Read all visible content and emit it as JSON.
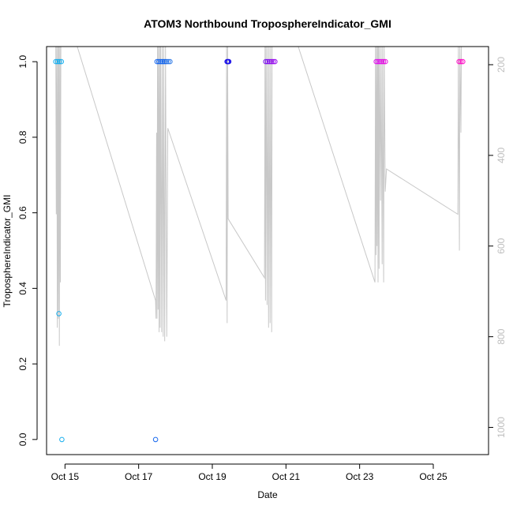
{
  "chart_data": {
    "type": "scatter",
    "title": "ATOM3 Northbound TroposphereIndicator_GMI",
    "xlabel": "Date",
    "ylabel": "TroposphereIndicator_GMI",
    "xlim": [
      "2016-10-14T12:00",
      "2016-10-26T12:00"
    ],
    "ylim": [
      -0.04,
      1.04
    ],
    "x_ticks": [
      "Oct 15",
      "Oct 17",
      "Oct 19",
      "Oct 21",
      "Oct 23",
      "Oct 25"
    ],
    "y_ticks": [
      "0.0",
      "0.2",
      "0.4",
      "0.6",
      "0.8",
      "1.0"
    ],
    "y2_ticks": [
      "200",
      "400",
      "600",
      "800",
      "1000"
    ],
    "y2_lim": [
      1060,
      160
    ],
    "y2_reversed": true,
    "grid": false,
    "points": [
      {
        "t": "2016-10-14T18:00",
        "y": 1.0,
        "color": "#17aeee"
      },
      {
        "t": "2016-10-14T19:12",
        "y": 1.0,
        "color": "#17aeee"
      },
      {
        "t": "2016-10-14T20:24",
        "y": 1.0,
        "color": "#17aeee"
      },
      {
        "t": "2016-10-14T21:36",
        "y": 1.0,
        "color": "#17aeee"
      },
      {
        "t": "2016-10-14T20:00",
        "y": 0.333,
        "color": "#17aeee"
      },
      {
        "t": "2016-10-14T22:00",
        "y": 0.0,
        "color": "#17aeee"
      },
      {
        "t": "2016-10-17T12:00",
        "y": 1.0,
        "color": "#1566ee"
      },
      {
        "t": "2016-10-17T13:12",
        "y": 1.0,
        "color": "#1566ee"
      },
      {
        "t": "2016-10-17T14:24",
        "y": 1.0,
        "color": "#1566ee"
      },
      {
        "t": "2016-10-17T15:36",
        "y": 1.0,
        "color": "#1566ee"
      },
      {
        "t": "2016-10-17T16:48",
        "y": 1.0,
        "color": "#1566ee"
      },
      {
        "t": "2016-10-17T18:00",
        "y": 1.0,
        "color": "#1566ee"
      },
      {
        "t": "2016-10-17T19:12",
        "y": 1.0,
        "color": "#2f7ae6"
      },
      {
        "t": "2016-10-17T20:24",
        "y": 1.0,
        "color": "#2f7ae6"
      },
      {
        "t": "2016-10-17T11:00",
        "y": 0.0,
        "color": "#1566ee"
      },
      {
        "t": "2016-10-19T09:36",
        "y": 1.0,
        "color": "#1a10e8"
      },
      {
        "t": "2016-10-19T10:10",
        "y": 1.0,
        "color": "#1a10e8"
      },
      {
        "t": "2016-10-19T10:45",
        "y": 1.0,
        "color": "#1a10e8"
      },
      {
        "t": "2016-10-20T10:48",
        "y": 1.0,
        "color": "#7a10ee"
      },
      {
        "t": "2016-10-20T12:00",
        "y": 1.0,
        "color": "#7a10ee"
      },
      {
        "t": "2016-10-20T13:12",
        "y": 1.0,
        "color": "#8a0eee"
      },
      {
        "t": "2016-10-20T14:24",
        "y": 1.0,
        "color": "#8a0eee"
      },
      {
        "t": "2016-10-20T15:36",
        "y": 1.0,
        "color": "#9a0cee"
      },
      {
        "t": "2016-10-20T16:48",
        "y": 1.0,
        "color": "#9a0cee"
      },
      {
        "t": "2016-10-23T10:48",
        "y": 1.0,
        "color": "#e010ee"
      },
      {
        "t": "2016-10-23T12:00",
        "y": 1.0,
        "color": "#e010ee"
      },
      {
        "t": "2016-10-23T13:12",
        "y": 1.0,
        "color": "#e010ee"
      },
      {
        "t": "2016-10-23T14:24",
        "y": 1.0,
        "color": "#e010ee"
      },
      {
        "t": "2016-10-23T15:36",
        "y": 1.0,
        "color": "#e810e0"
      },
      {
        "t": "2016-10-23T16:48",
        "y": 1.0,
        "color": "#e810e0"
      },
      {
        "t": "2016-10-25T16:48",
        "y": 1.0,
        "color": "#ff10c8"
      },
      {
        "t": "2016-10-25T18:00",
        "y": 1.0,
        "color": "#ff10c8"
      },
      {
        "t": "2016-10-25T19:12",
        "y": 1.0,
        "color": "#ff10c8"
      }
    ],
    "pressure_series": {
      "color": "#c8c8c8",
      "points": [
        [
          "2016-10-14T18:00",
          160
        ],
        [
          "2016-10-14T18:20",
          530
        ],
        [
          "2016-10-14T18:40",
          160
        ],
        [
          "2016-10-14T19:00",
          780
        ],
        [
          "2016-10-14T19:20",
          160
        ],
        [
          "2016-10-14T19:40",
          760
        ],
        [
          "2016-10-14T20:00",
          160
        ],
        [
          "2016-10-14T20:20",
          820
        ],
        [
          "2016-10-14T20:40",
          160
        ],
        [
          "2016-10-14T21:00",
          680
        ],
        [
          "2016-10-14T21:20",
          160
        ],
        [
          "2016-10-15T08:00",
          160
        ],
        [
          "2016-10-17T11:00",
          720
        ],
        [
          "2016-10-17T11:20",
          760
        ],
        [
          "2016-10-17T11:40",
          350
        ],
        [
          "2016-10-17T12:00",
          760
        ],
        [
          "2016-10-17T12:20",
          160
        ],
        [
          "2016-10-17T12:40",
          740
        ],
        [
          "2016-10-17T13:00",
          160
        ],
        [
          "2016-10-17T13:20",
          790
        ],
        [
          "2016-10-17T13:40",
          160
        ],
        [
          "2016-10-17T14:00",
          780
        ],
        [
          "2016-10-17T14:20",
          160
        ],
        [
          "2016-10-17T15:00",
          790
        ],
        [
          "2016-10-17T15:20",
          160
        ],
        [
          "2016-10-17T16:00",
          800
        ],
        [
          "2016-10-17T16:20",
          160
        ],
        [
          "2016-10-17T17:00",
          810
        ],
        [
          "2016-10-17T17:30",
          160
        ],
        [
          "2016-10-17T18:20",
          800
        ],
        [
          "2016-10-17T19:00",
          340
        ],
        [
          "2016-10-19T09:00",
          720
        ],
        [
          "2016-10-19T09:20",
          160
        ],
        [
          "2016-10-19T09:40",
          770
        ],
        [
          "2016-10-19T10:00",
          160
        ],
        [
          "2016-10-19T10:20",
          540
        ],
        [
          "2016-10-20T10:00",
          670
        ],
        [
          "2016-10-20T10:20",
          160
        ],
        [
          "2016-10-20T10:40",
          720
        ],
        [
          "2016-10-20T11:00",
          160
        ],
        [
          "2016-10-20T11:40",
          730
        ],
        [
          "2016-10-20T12:00",
          160
        ],
        [
          "2016-10-20T12:40",
          780
        ],
        [
          "2016-10-20T13:00",
          160
        ],
        [
          "2016-10-20T13:40",
          770
        ],
        [
          "2016-10-20T14:00",
          160
        ],
        [
          "2016-10-20T14:40",
          790
        ],
        [
          "2016-10-20T15:00",
          160
        ],
        [
          "2016-10-20T16:00",
          160
        ],
        [
          "2016-10-21T08:00",
          160
        ],
        [
          "2016-10-23T10:00",
          680
        ],
        [
          "2016-10-23T10:20",
          160
        ],
        [
          "2016-10-23T10:40",
          620
        ],
        [
          "2016-10-23T11:00",
          160
        ],
        [
          "2016-10-23T11:20",
          600
        ],
        [
          "2016-10-23T11:40",
          160
        ],
        [
          "2016-10-23T12:00",
          680
        ],
        [
          "2016-10-23T12:20",
          160
        ],
        [
          "2016-10-23T12:40",
          650
        ],
        [
          "2016-10-23T13:00",
          160
        ],
        [
          "2016-10-23T13:40",
          500
        ],
        [
          "2016-10-23T14:00",
          160
        ],
        [
          "2016-10-23T14:40",
          640
        ],
        [
          "2016-10-23T15:00",
          160
        ],
        [
          "2016-10-23T15:40",
          680
        ],
        [
          "2016-10-23T16:00",
          160
        ],
        [
          "2016-10-23T16:40",
          480
        ],
        [
          "2016-10-23T17:30",
          430
        ],
        [
          "2016-10-25T16:00",
          530
        ],
        [
          "2016-10-25T16:20",
          160
        ],
        [
          "2016-10-25T17:00",
          610
        ],
        [
          "2016-10-25T17:20",
          160
        ],
        [
          "2016-10-25T18:00",
          350
        ],
        [
          "2016-10-25T18:20",
          160
        ]
      ]
    }
  }
}
